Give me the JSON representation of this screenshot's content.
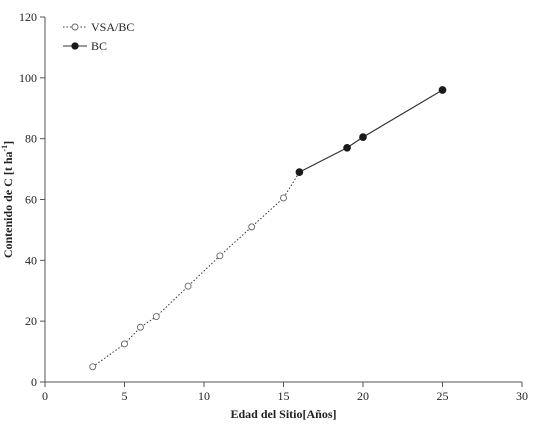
{
  "chart_data": {
    "type": "scatter",
    "xlabel": "Edad del Sitio[Años]",
    "ylabel_main": "Contenido de C [t ha",
    "ylabel_sup": "-1",
    "ylabel_end": "]",
    "xlim": [
      0,
      30
    ],
    "ylim": [
      0,
      120
    ],
    "x_ticks": [
      0,
      5,
      10,
      15,
      20,
      25,
      30
    ],
    "y_ticks": [
      0,
      20,
      40,
      60,
      80,
      100,
      120
    ],
    "grid": false,
    "legend_position": "top-left",
    "series": [
      {
        "name": "VSA/BC",
        "marker": "open-circle",
        "line": "dotted",
        "x": [
          3,
          5,
          6,
          7,
          9,
          11,
          13,
          15,
          16
        ],
        "y": [
          5,
          12.5,
          18,
          21.5,
          31.5,
          41.5,
          51,
          60.5,
          69
        ]
      },
      {
        "name": "BC",
        "marker": "filled-circle",
        "line": "solid",
        "x": [
          16,
          19,
          20,
          25
        ],
        "y": [
          69,
          77,
          80.5,
          96
        ]
      }
    ],
    "colors": {
      "line": "#333333",
      "marker_fill_filled": "#1a1a1a",
      "marker_fill_open": "#ffffff",
      "axis": "#555555"
    }
  }
}
